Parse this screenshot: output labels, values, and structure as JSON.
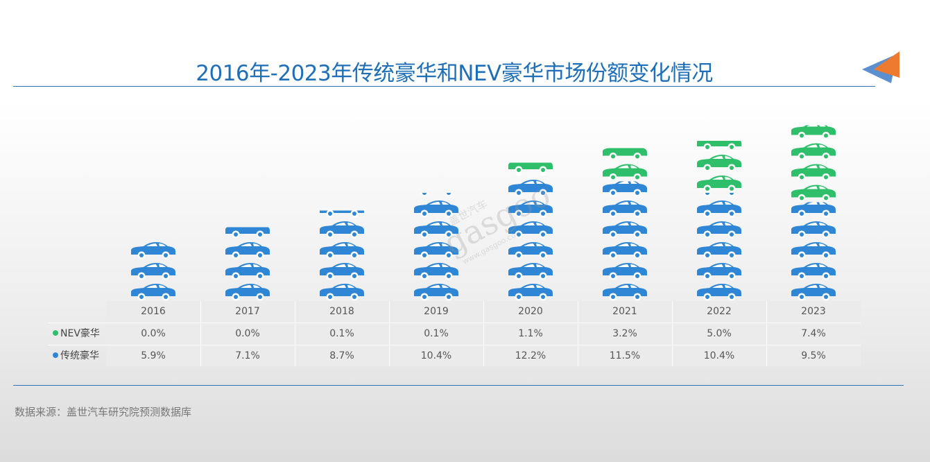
{
  "title": "2016年-2023年传统豪华和NEV豪华市场份额变化情况",
  "source": "数据来源：盖世汽车研究院预测数据库",
  "watermark": {
    "brand": "盖世汽车",
    "logo_text": "gasgoo",
    "url": "www.gasgoo.com"
  },
  "colors": {
    "nev": "#2fbf6b",
    "traditional": "#2f86d4",
    "title": "#1f6fb8",
    "rule": "#2f72b5",
    "arrow_orange": "#ee7a30",
    "arrow_blue": "#5b8fce"
  },
  "chart_data": {
    "type": "table",
    "chart_style": "pictograph stacked columns (car icons)",
    "categories": [
      "2016",
      "2017",
      "2018",
      "2019",
      "2020",
      "2021",
      "2022",
      "2023"
    ],
    "unit": "%",
    "series": [
      {
        "name": "NEV豪华",
        "values": [
          0.0,
          0.0,
          0.1,
          0.1,
          1.1,
          3.2,
          5.0,
          7.4
        ],
        "labels": [
          "0.0%",
          "0.0%",
          "0.1%",
          "0.1%",
          "1.1%",
          "3.2%",
          "5.0%",
          "7.4%"
        ]
      },
      {
        "name": "传统豪华",
        "values": [
          5.9,
          7.1,
          8.7,
          10.4,
          12.2,
          11.5,
          10.4,
          9.5
        ],
        "labels": [
          "5.9%",
          "7.1%",
          "8.7%",
          "10.4%",
          "12.2%",
          "11.5%",
          "10.4%",
          "9.5%"
        ]
      }
    ],
    "stacking": "traditional at bottom, NEV on top"
  }
}
